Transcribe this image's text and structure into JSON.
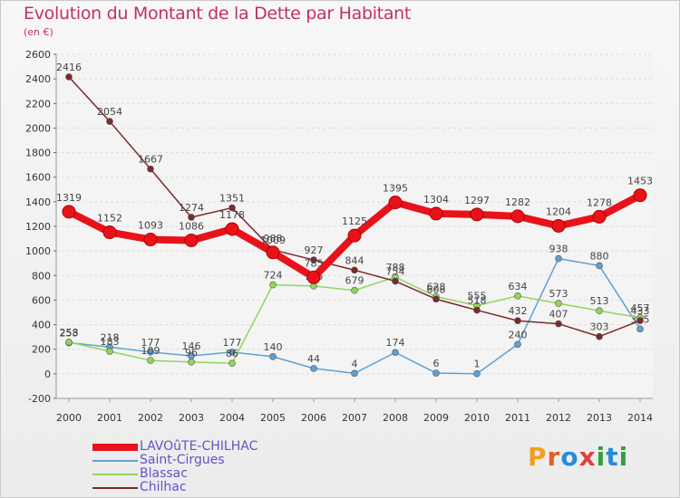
{
  "header": {
    "title": "Evolution du Montant de la Dette par Habitant",
    "subtitle": "(en €)"
  },
  "logo": {
    "letters": [
      "P",
      "r",
      "o",
      "x",
      "i",
      "t",
      "i"
    ],
    "colors": [
      "#f0a020",
      "#e06020",
      "#2a8ad8",
      "#e04040",
      "#30a040",
      "#2a8ad8",
      "#30a040"
    ]
  },
  "chart_data": {
    "type": "line",
    "title": "Evolution du Montant de la Dette par Habitant",
    "subtitle": "(en €)",
    "x": [
      "2000",
      "2001",
      "2002",
      "2003",
      "2004",
      "2005",
      "2006",
      "2007",
      "2008",
      "2009",
      "2010",
      "2011",
      "2012",
      "2013",
      "2014"
    ],
    "ylim": [
      -200,
      2600
    ],
    "yticks": [
      -200,
      0,
      200,
      400,
      600,
      800,
      1000,
      1200,
      1400,
      1600,
      1800,
      2000,
      2200,
      2400,
      2600
    ],
    "grid": true,
    "legend_position": "bottom-left",
    "series": [
      {
        "name": "LAVOûTE-CHILHAC",
        "color": "#e8131a",
        "emphasis": true,
        "values": [
          1319,
          1152,
          1093,
          1086,
          1178,
          988,
          785,
          1125,
          1395,
          1304,
          1297,
          1282,
          1204,
          1278,
          1453
        ]
      },
      {
        "name": "Saint-Cirgues",
        "color": "#5fa0d4",
        "emphasis": false,
        "values": [
          253,
          218,
          177,
          146,
          177,
          140,
          44,
          4,
          174,
          6,
          1,
          240,
          938,
          880,
          365
        ]
      },
      {
        "name": "Blassac",
        "color": "#8fd65a",
        "emphasis": false,
        "values": [
          258,
          183,
          109,
          96,
          86,
          724,
          715,
          679,
          788,
          628,
          555,
          634,
          573,
          513,
          457
        ]
      },
      {
        "name": "Chilhac",
        "color": "#7a2a2a",
        "emphasis": false,
        "values": [
          2416,
          2054,
          1667,
          1274,
          1351,
          1009,
          927,
          844,
          754,
          608,
          518,
          432,
          407,
          303,
          433
        ]
      }
    ]
  }
}
